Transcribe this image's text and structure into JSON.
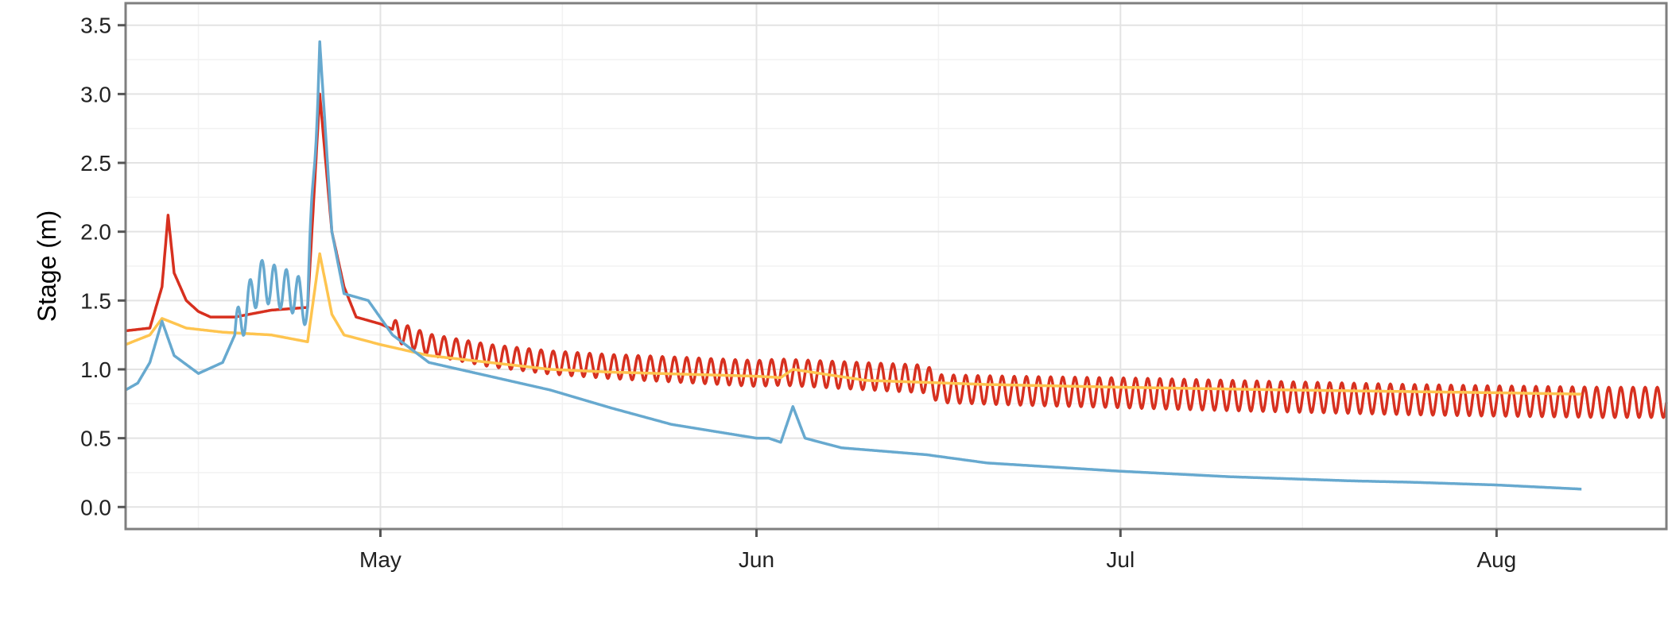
{
  "chart_data": {
    "type": "line",
    "title": "",
    "xlabel": "",
    "ylabel": "Stage (m)",
    "xlim": [
      "2012-04-10",
      "2012-08-15"
    ],
    "ylim": [
      -0.16,
      3.66
    ],
    "yticks": [
      {
        "value": 0.0,
        "label": "0.0"
      },
      {
        "value": 0.5,
        "label": "0.5"
      },
      {
        "value": 1.0,
        "label": "1.0"
      },
      {
        "value": 1.5,
        "label": "1.5"
      },
      {
        "value": 2.0,
        "label": "2.0"
      },
      {
        "value": 2.5,
        "label": "2.5"
      },
      {
        "value": 3.0,
        "label": "3.0"
      },
      {
        "value": 3.5,
        "label": "3.5"
      }
    ],
    "xticks": [
      {
        "value": "2012-05-01",
        "label": "May"
      },
      {
        "value": "2012-06-01",
        "label": "Jun"
      },
      {
        "value": "2012-07-01",
        "label": "Jul"
      },
      {
        "value": "2012-08-01",
        "label": "Aug"
      }
    ],
    "x_minor_gridlines": [
      "2012-04-16",
      "2012-05-16",
      "2012-06-16",
      "2012-07-16"
    ],
    "y_minor_gridlines": [
      0.25,
      0.75,
      1.25,
      1.75,
      2.25,
      2.75,
      3.25
    ],
    "grid": true,
    "legend": "none",
    "series": [
      {
        "color": "#D7301F",
        "x": [
          "2012-04-10",
          "2012-04-12",
          "2012-04-13",
          "2012-04-13.5",
          "2012-04-14",
          "2012-04-15",
          "2012-04-16",
          "2012-04-17",
          "2012-04-19",
          "2012-04-22",
          "2012-04-25",
          "2012-04-26",
          "2012-04-27",
          "2012-04-28",
          "2012-04-29",
          "2012-05-01",
          "2012-05-03",
          "2012-05-05",
          "2012-05-10",
          "2012-05-15",
          "2012-05-20",
          "2012-05-25",
          "2012-06-01",
          "2012-06-03",
          "2012-06-10",
          "2012-06-15",
          "2012-06-16",
          "2012-06-20",
          "2012-06-25",
          "2012-07-01",
          "2012-07-10",
          "2012-07-20",
          "2012-07-25",
          "2012-08-01",
          "2012-08-10",
          "2012-08-15"
        ],
        "y": [
          1.28,
          1.3,
          1.6,
          2.12,
          1.7,
          1.5,
          1.42,
          1.38,
          1.38,
          1.43,
          1.45,
          3.0,
          2.0,
          1.6,
          1.38,
          1.33,
          1.25,
          1.18,
          1.1,
          1.05,
          1.02,
          1.0,
          0.97,
          0.98,
          0.95,
          0.93,
          0.86,
          0.85,
          0.84,
          0.83,
          0.81,
          0.79,
          0.78,
          0.77,
          0.76,
          0.76
        ],
        "daily_oscillation": {
          "start": "2012-05-02",
          "amplitude": [
            0.15,
            0.18,
            0.2,
            0.22,
            0.22,
            0.22
          ]
        }
      },
      {
        "color": "#FEC44F",
        "x": [
          "2012-04-10",
          "2012-04-12",
          "2012-04-13",
          "2012-04-15",
          "2012-04-18",
          "2012-04-22",
          "2012-04-25",
          "2012-04-26",
          "2012-04-27",
          "2012-04-28",
          "2012-05-01",
          "2012-05-05",
          "2012-05-10",
          "2012-05-15",
          "2012-05-20",
          "2012-06-01",
          "2012-06-03",
          "2012-06-04",
          "2012-06-10",
          "2012-06-20",
          "2012-07-01",
          "2012-07-15",
          "2012-08-01",
          "2012-08-08"
        ],
        "y": [
          1.18,
          1.25,
          1.37,
          1.3,
          1.27,
          1.25,
          1.2,
          1.84,
          1.4,
          1.25,
          1.18,
          1.1,
          1.05,
          1.0,
          0.98,
          0.95,
          0.94,
          1.0,
          0.92,
          0.89,
          0.87,
          0.85,
          0.83,
          0.82
        ]
      },
      {
        "color": "#67A9CF",
        "x": [
          "2012-04-10",
          "2012-04-11",
          "2012-04-12",
          "2012-04-13",
          "2012-04-14",
          "2012-04-16",
          "2012-04-18",
          "2012-04-20",
          "2012-04-21",
          "2012-04-24",
          "2012-04-25",
          "2012-04-26",
          "2012-04-27",
          "2012-04-28",
          "2012-04-30",
          "2012-05-02",
          "2012-05-05",
          "2012-05-10",
          "2012-05-15",
          "2012-05-20",
          "2012-05-25",
          "2012-06-01",
          "2012-06-02",
          "2012-06-03",
          "2012-06-04",
          "2012-06-05",
          "2012-06-08",
          "2012-06-15",
          "2012-06-20",
          "2012-07-01",
          "2012-07-10",
          "2012-07-20",
          "2012-07-25",
          "2012-08-01",
          "2012-08-08"
        ],
        "y": [
          0.85,
          0.9,
          1.05,
          1.35,
          1.1,
          0.97,
          1.05,
          1.45,
          1.65,
          1.55,
          1.45,
          3.38,
          2.0,
          1.55,
          1.5,
          1.25,
          1.05,
          0.95,
          0.85,
          0.72,
          0.6,
          0.5,
          0.5,
          0.47,
          0.73,
          0.5,
          0.43,
          0.38,
          0.32,
          0.26,
          0.22,
          0.19,
          0.18,
          0.16,
          0.13
        ],
        "daily_oscillation": {
          "start": "2012-04-19",
          "end": "2012-04-26",
          "amplitude": 0.3
        }
      }
    ]
  }
}
